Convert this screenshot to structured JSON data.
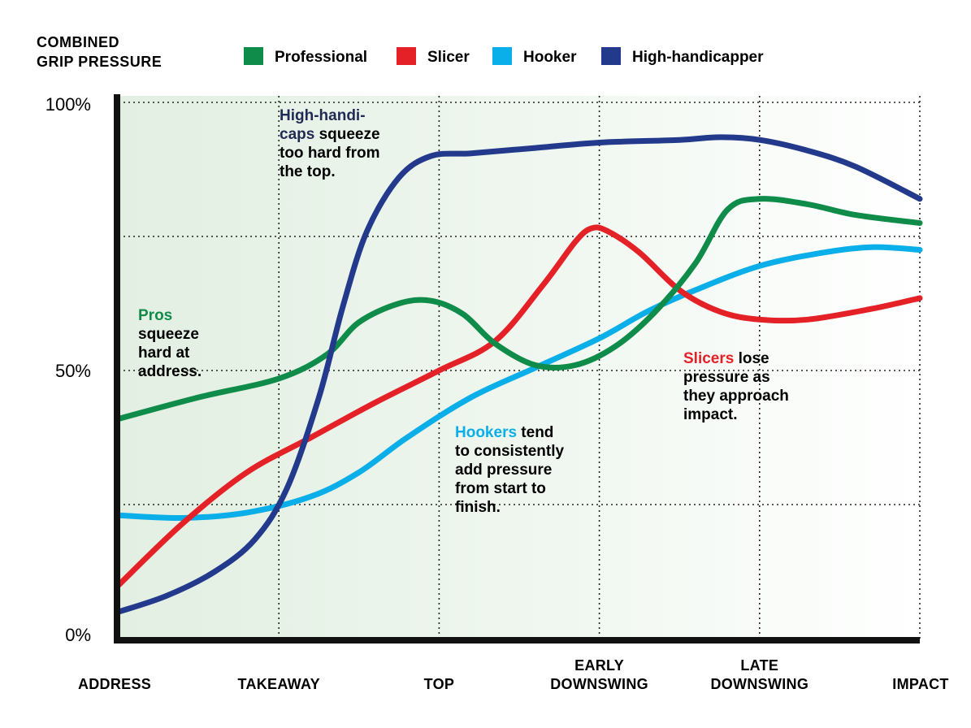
{
  "chart_data": {
    "type": "line",
    "ylabel": [
      "COMBINED",
      "GRIP PRESSURE"
    ],
    "ylim": [
      0,
      100
    ],
    "yticks": [
      {
        "value": 0,
        "label": "0%"
      },
      {
        "value": 50,
        "label": "50%"
      },
      {
        "value": 100,
        "label": "100%"
      }
    ],
    "ygrid": [
      25,
      50,
      75,
      100
    ],
    "x_range": [
      0,
      5
    ],
    "categories": [
      {
        "x": 0,
        "lines": [
          "ADDRESS"
        ]
      },
      {
        "x": 1,
        "lines": [
          "TAKEAWAY"
        ]
      },
      {
        "x": 2,
        "lines": [
          "TOP"
        ]
      },
      {
        "x": 3,
        "lines": [
          "EARLY",
          "DOWNSWING"
        ]
      },
      {
        "x": 4,
        "lines": [
          "LATE",
          "DOWNSWING"
        ]
      },
      {
        "x": 5,
        "lines": [
          "IMPACT"
        ]
      }
    ],
    "series": [
      {
        "name": "Professional",
        "color": "#0f8c4a",
        "points": [
          [
            0,
            41
          ],
          [
            0.5,
            45
          ],
          [
            1,
            48.5
          ],
          [
            1.3,
            53
          ],
          [
            1.5,
            59
          ],
          [
            1.75,
            62.5
          ],
          [
            1.95,
            63
          ],
          [
            2.15,
            60.5
          ],
          [
            2.35,
            55
          ],
          [
            2.6,
            51
          ],
          [
            2.85,
            51
          ],
          [
            3.1,
            54.5
          ],
          [
            3.35,
            61
          ],
          [
            3.6,
            70
          ],
          [
            3.8,
            80
          ],
          [
            4.0,
            82
          ],
          [
            4.3,
            81
          ],
          [
            4.6,
            79
          ],
          [
            5,
            77.5
          ]
        ]
      },
      {
        "name": "Slicer",
        "color": "#e42127",
        "points": [
          [
            0,
            10
          ],
          [
            0.4,
            21.5
          ],
          [
            0.8,
            31
          ],
          [
            1.2,
            37.5
          ],
          [
            1.6,
            44
          ],
          [
            2,
            50
          ],
          [
            2.35,
            55.5
          ],
          [
            2.65,
            66
          ],
          [
            2.85,
            74
          ],
          [
            2.95,
            76.5
          ],
          [
            3.05,
            76
          ],
          [
            3.25,
            72
          ],
          [
            3.5,
            65
          ],
          [
            3.75,
            61
          ],
          [
            4,
            59.5
          ],
          [
            4.3,
            59.5
          ],
          [
            4.7,
            61.5
          ],
          [
            5,
            63.5
          ]
        ]
      },
      {
        "name": "Hooker",
        "color": "#0aaee8",
        "points": [
          [
            0,
            23
          ],
          [
            0.4,
            22.5
          ],
          [
            0.8,
            23.5
          ],
          [
            1.2,
            26.5
          ],
          [
            1.5,
            31
          ],
          [
            1.8,
            37.5
          ],
          [
            2.2,
            45
          ],
          [
            2.6,
            50.5
          ],
          [
            3,
            56
          ],
          [
            3.3,
            61
          ],
          [
            3.6,
            65
          ],
          [
            4,
            69.5
          ],
          [
            4.4,
            72
          ],
          [
            4.7,
            73
          ],
          [
            5,
            72.5
          ]
        ]
      },
      {
        "name": "High-handicapper",
        "color": "#233a8c",
        "points": [
          [
            0,
            5
          ],
          [
            0.3,
            8
          ],
          [
            0.6,
            12.5
          ],
          [
            0.85,
            18.5
          ],
          [
            1.05,
            28
          ],
          [
            1.25,
            45
          ],
          [
            1.4,
            62
          ],
          [
            1.55,
            76
          ],
          [
            1.75,
            86
          ],
          [
            1.95,
            90
          ],
          [
            2.2,
            90.5
          ],
          [
            2.6,
            91.5
          ],
          [
            3,
            92.5
          ],
          [
            3.5,
            93
          ],
          [
            3.75,
            93.5
          ],
          [
            4,
            93
          ],
          [
            4.3,
            91
          ],
          [
            4.6,
            88
          ],
          [
            5,
            82
          ]
        ]
      }
    ],
    "annotations": [
      {
        "key": "hi",
        "segments": [
          [
            {
              "text": "High-handi-",
              "color": "#1f2b55"
            }
          ],
          [
            {
              "text": "caps",
              "color": "#1f2b55"
            },
            {
              "text": " squeeze",
              "color": "#000000"
            }
          ],
          [
            {
              "text": "too hard from",
              "color": "#000000"
            }
          ],
          [
            {
              "text": "the top.",
              "color": "#000000"
            }
          ]
        ]
      },
      {
        "key": "pro",
        "segments": [
          [
            {
              "text": "Pros",
              "color": "#0f8c4a"
            }
          ],
          [
            {
              "text": "squeeze",
              "color": "#000000"
            }
          ],
          [
            {
              "text": "hard at",
              "color": "#000000"
            }
          ],
          [
            {
              "text": "address.",
              "color": "#000000"
            }
          ]
        ]
      },
      {
        "key": "hook",
        "segments": [
          [
            {
              "text": "Hookers",
              "color": "#0aaee8"
            },
            {
              "text": " tend",
              "color": "#000000"
            }
          ],
          [
            {
              "text": "to consistently",
              "color": "#000000"
            }
          ],
          [
            {
              "text": "add pressure",
              "color": "#000000"
            }
          ],
          [
            {
              "text": "from start to",
              "color": "#000000"
            }
          ],
          [
            {
              "text": "finish.",
              "color": "#000000"
            }
          ]
        ]
      },
      {
        "key": "slice",
        "segments": [
          [
            {
              "text": "Slicers",
              "color": "#e42127"
            },
            {
              "text": " lose",
              "color": "#000000"
            }
          ],
          [
            {
              "text": "pressure as",
              "color": "#000000"
            }
          ],
          [
            {
              "text": "they approach",
              "color": "#000000"
            }
          ],
          [
            {
              "text": "impact.",
              "color": "#000000"
            }
          ]
        ]
      }
    ]
  }
}
